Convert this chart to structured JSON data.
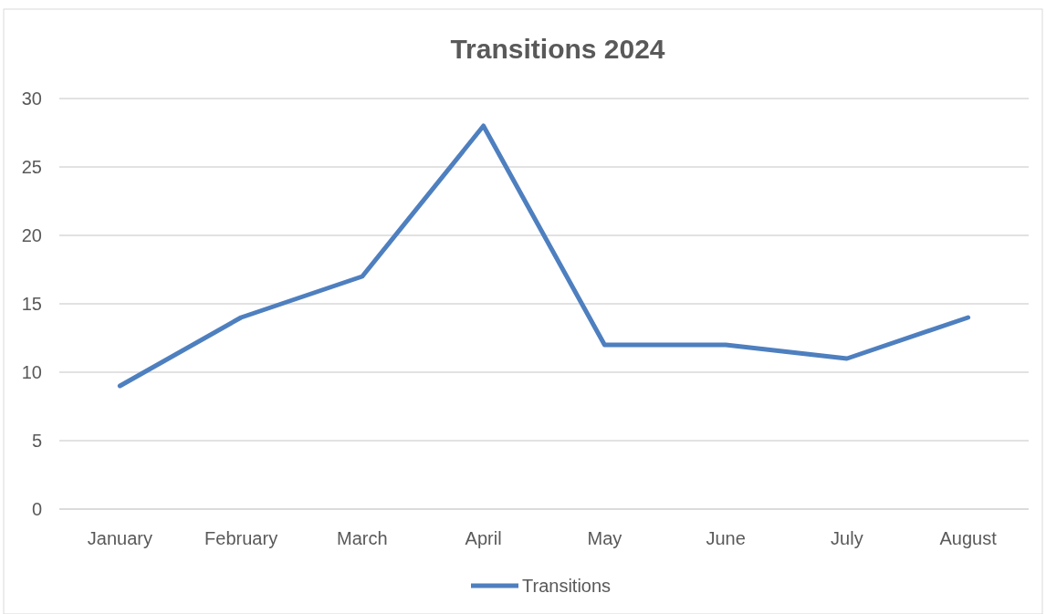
{
  "chart_data": {
    "type": "line",
    "title": "Transitions 2024",
    "categories": [
      "January",
      "February",
      "March",
      "April",
      "May",
      "June",
      "July",
      "August"
    ],
    "series": [
      {
        "name": "Transitions",
        "color": "#4e7fbf",
        "values": [
          9,
          14,
          17,
          28,
          12,
          12,
          11,
          14
        ]
      }
    ],
    "ylim": [
      0,
      30
    ],
    "yticks": [
      0,
      5,
      10,
      15,
      20,
      25,
      30
    ],
    "grid": "y",
    "legend": "bottom",
    "marker": "none",
    "line_style": "solid"
  }
}
